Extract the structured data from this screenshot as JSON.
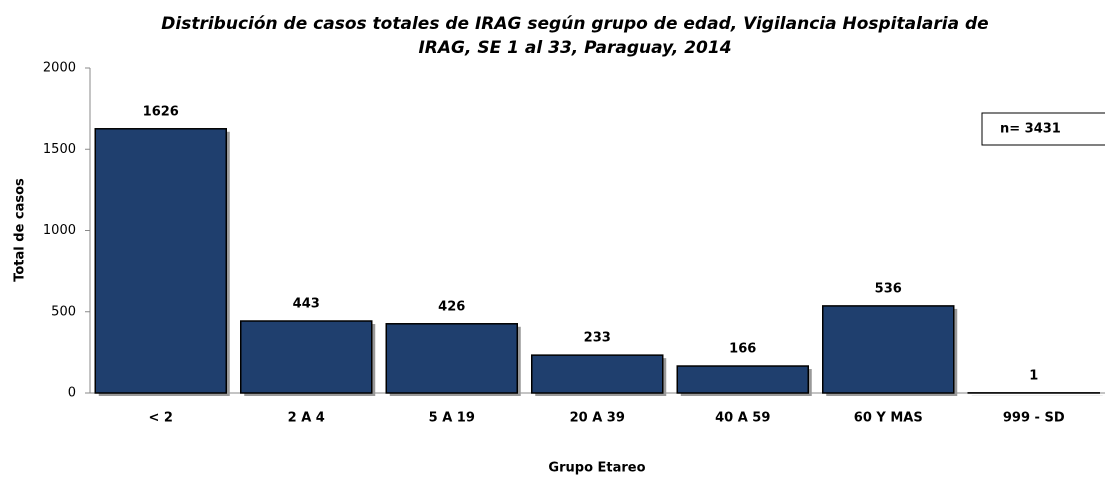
{
  "chart_data": {
    "type": "bar",
    "title": [
      "Distribución de casos totales de IRAG según grupo de edad, Vigilancia Hospitalaria de",
      "IRAG, SE 1 al 33, Paraguay, 2014"
    ],
    "x_label": "Grupo Etareo",
    "y_label": "Total de casos",
    "annotation": "n= 3431",
    "categories": [
      "< 2",
      "2 A 4",
      "5 A 19",
      "20 A 39",
      "40 A 59",
      "60 Y MAS",
      "999 - SD"
    ],
    "values": [
      1626,
      443,
      426,
      233,
      166,
      536,
      1
    ],
    "color": "#1f3f6e",
    "ylim": [
      0,
      2000
    ],
    "yticks": [
      0,
      500,
      1000,
      1500,
      2000
    ],
    "grid": false
  }
}
